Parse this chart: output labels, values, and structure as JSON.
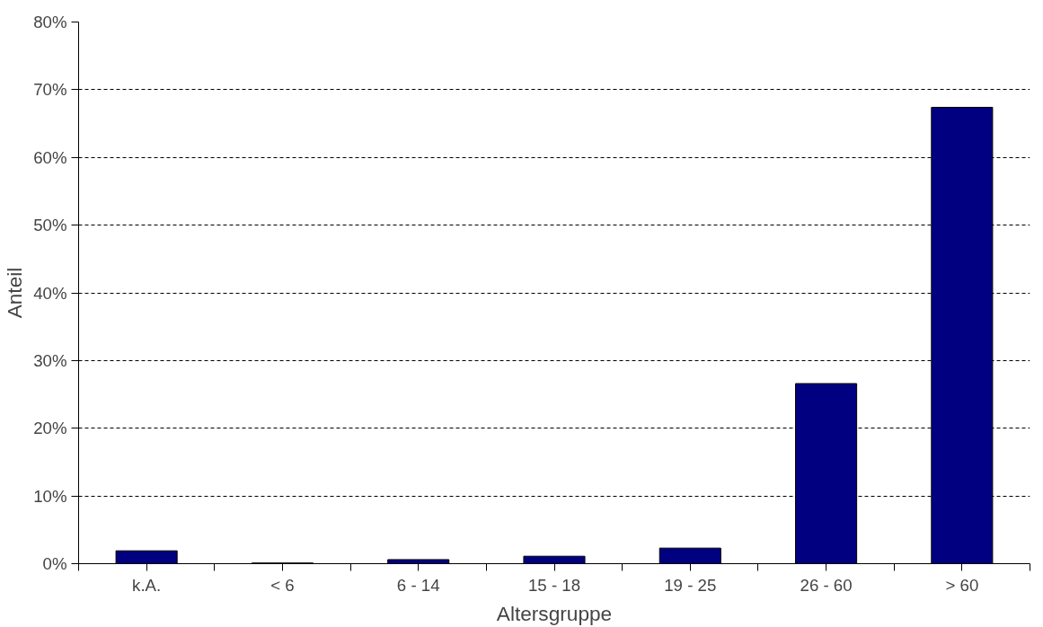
{
  "chart_data": {
    "type": "bar",
    "xlabel": "Altersgruppe",
    "ylabel": "Anteil",
    "categories": [
      "k.A.",
      "< 6",
      "6 - 14",
      "15 - 18",
      "19 - 25",
      "26 - 60",
      "> 60"
    ],
    "values": [
      1.9,
      0.1,
      0.6,
      1.1,
      2.3,
      26.6,
      67.4
    ],
    "color": "#000080",
    "ylim": [
      0,
      80
    ],
    "yticks": [
      {
        "value": 0,
        "label": "0%"
      },
      {
        "value": 10,
        "label": "10%"
      },
      {
        "value": 20,
        "label": "20%"
      },
      {
        "value": 30,
        "label": "30%"
      },
      {
        "value": 40,
        "label": "40%"
      },
      {
        "value": 50,
        "label": "50%"
      },
      {
        "value": 60,
        "label": "60%"
      },
      {
        "value": 70,
        "label": "70%"
      },
      {
        "value": 80,
        "label": "80%"
      }
    ],
    "grid": "y"
  }
}
